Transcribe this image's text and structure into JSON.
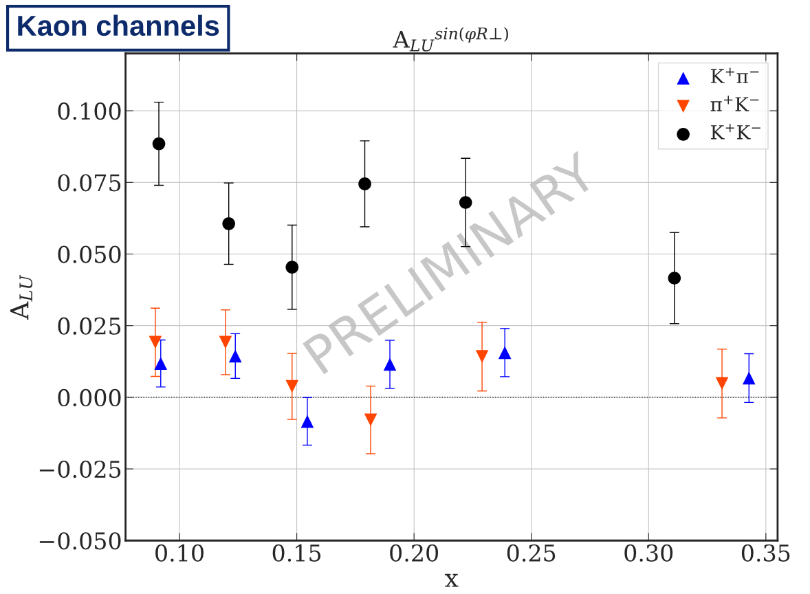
{
  "chart_data": {
    "type": "scatter",
    "title": "A$_{LU}$$^{sin(φR⊥)}$",
    "xlabel": "x",
    "ylabel": "A$_{LU}$",
    "xlim": [
      0.077,
      0.355
    ],
    "xticks": [
      {
        "value": 0.1,
        "label": "0.10"
      },
      0.15,
      {
        "value": 0.2,
        "label": "0.20"
      },
      0.25,
      {
        "value": 0.3,
        "label": "0.30"
      },
      0.35
    ],
    "ylim": [
      -0.05,
      0.12
    ],
    "yticks": [
      {
        "value": -0.05,
        "label": "−0.050"
      },
      {
        "value": -0.025,
        "label": "−0.025"
      },
      {
        "value": 0,
        "label": "0.000"
      },
      {
        "value": 0.025,
        "label": "0.025"
      },
      {
        "value": 0.05,
        "label": "0.050"
      },
      {
        "value": 0.075,
        "label": "0.075"
      },
      {
        "value": 0.1,
        "label": "0.100"
      }
    ],
    "grid": true,
    "legend": "top right",
    "ref_lines": [
      {
        "axis": "y",
        "value": 0,
        "color": "#000000",
        "line_style": "dotted"
      }
    ],
    "annotations": [
      "Kaon channels",
      "PRELIMINARY"
    ],
    "series": [
      {
        "name": "K$^{+}$π$^{−}$",
        "color": "#0000ff",
        "marker": "triangle",
        "x": [
          0.092,
          0.1238,
          0.1545,
          0.1897,
          0.2387,
          0.3428
        ],
        "values": [
          0.0118,
          0.0144,
          -0.0084,
          0.0115,
          0.0156,
          0.0067
        ],
        "errors": [
          0.0082,
          0.0078,
          0.0083,
          0.0084,
          0.0084,
          0.0085
        ]
      },
      {
        "name": "π$^{+}$K$^{−}$",
        "color": "#ff4500",
        "marker": "triangle_down",
        "x": [
          0.0897,
          0.1196,
          0.148,
          0.1815,
          0.229,
          0.3313
        ],
        "values": [
          0.0192,
          0.0192,
          0.0038,
          -0.0079,
          0.0142,
          0.0048
        ],
        "errors": [
          0.0119,
          0.0113,
          0.0115,
          0.0118,
          0.012,
          0.012
        ]
      },
      {
        "name": "K$^{+}$K$^{−}$",
        "color": "#000000",
        "marker": "circle",
        "x": [
          0.0912,
          0.121,
          0.148,
          0.179,
          0.222,
          0.311
        ],
        "values": [
          0.0885,
          0.0606,
          0.0454,
          0.0745,
          0.068,
          0.0416
        ],
        "errors": [
          0.0145,
          0.0142,
          0.0147,
          0.015,
          0.0154,
          0.0159
        ]
      }
    ]
  }
}
